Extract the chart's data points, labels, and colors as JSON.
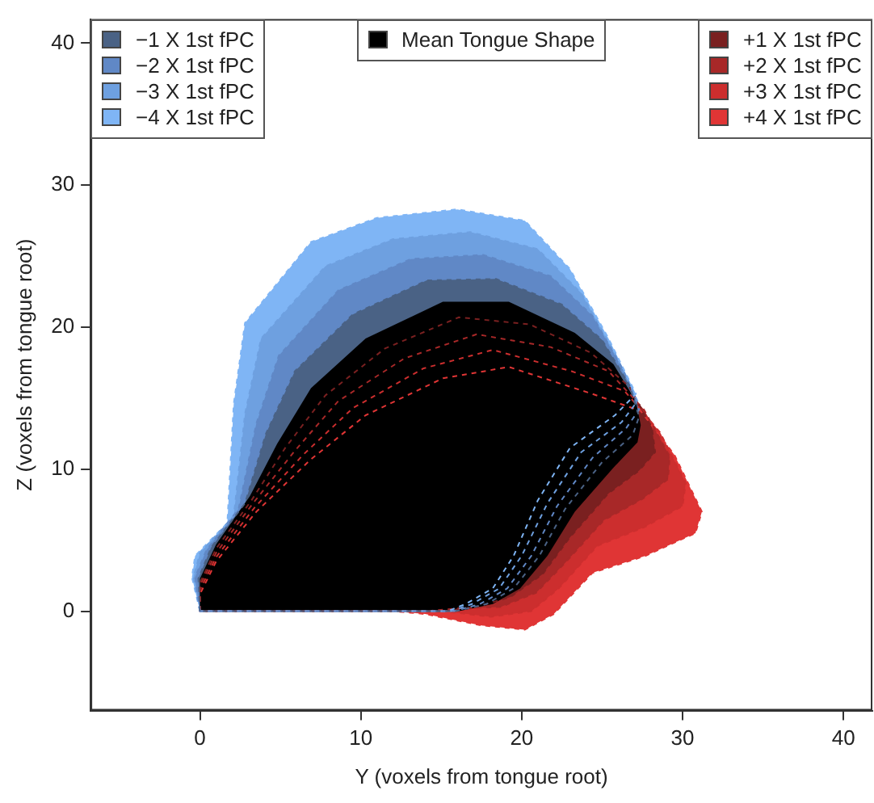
{
  "chart_data": {
    "type": "area",
    "xlabel": "Y (voxels from tongue root)",
    "ylabel": "Z (voxels from tongue root)",
    "xlim": [
      -6.8,
      41.8
    ],
    "ylim": [
      -7,
      41.7
    ],
    "xticks": [
      0,
      10,
      20,
      30,
      40
    ],
    "yticks": [
      0,
      10,
      20,
      30,
      40
    ],
    "grid": false,
    "legend": "top",
    "series": [
      {
        "name": "−1 X 1st fPC",
        "color": "#4a6285",
        "line_style": "dashed",
        "x": [
          0,
          -0.1,
          0.7,
          2.8,
          4.1,
          5.9,
          9.5,
          14.1,
          18.4,
          22.5,
          25,
          26.7,
          27.3,
          26.9,
          25,
          22.7,
          21.1,
          19.5,
          17.8,
          15.9
        ],
        "values": [
          0,
          2.3,
          4.5,
          7.6,
          12.5,
          16.9,
          20.9,
          23.3,
          23.4,
          21.6,
          19.1,
          15.9,
          13.7,
          12.4,
          10.5,
          7.2,
          3.9,
          1.6,
          0.5,
          0
        ]
      },
      {
        "name": "−2 X 1st fPC",
        "color": "#6088c6",
        "line_style": "dashed",
        "x": [
          0,
          -0.3,
          0.4,
          2.4,
          3.5,
          4.9,
          8.6,
          13.1,
          17.6,
          21.8,
          24.4,
          26.3,
          27.3,
          26.5,
          24.4,
          22.2,
          20.6,
          19.1,
          17.4,
          15.8
        ],
        "values": [
          0,
          2.4,
          4.3,
          7.2,
          13.2,
          18,
          22.6,
          24.8,
          25.1,
          23.6,
          20.8,
          17,
          14.2,
          12.9,
          10.8,
          7.4,
          3.9,
          1.6,
          0.5,
          0
        ]
      },
      {
        "name": "−3 X 1st fPC",
        "color": "#6ea0e0",
        "line_style": "dashed",
        "x": [
          0,
          -0.4,
          0,
          2.1,
          2.8,
          3.8,
          7.8,
          12,
          16.8,
          21,
          23.7,
          25.8,
          27.2,
          26.2,
          23.7,
          21.6,
          20,
          18.6,
          16.9,
          15.6
        ],
        "values": [
          0,
          2.4,
          4.1,
          6.7,
          13.9,
          19.2,
          24.3,
          26.2,
          26.7,
          25.5,
          22.4,
          18.1,
          14.8,
          13.3,
          11.2,
          7.6,
          3.9,
          1.6,
          0.5,
          0
        ]
      },
      {
        "name": "−4 X 1st fPC",
        "color": "#7fb5f5",
        "line_style": "dashed",
        "x": [
          0,
          -0.5,
          -0.3,
          1.7,
          2.1,
          2.8,
          6.9,
          11,
          16,
          20.2,
          23,
          25.4,
          27.1,
          25.8,
          23,
          21,
          19.5,
          18.2,
          16.5,
          15.4
        ],
        "values": [
          0,
          2.4,
          3.9,
          6.2,
          14.6,
          20.3,
          26,
          27.7,
          28.3,
          27.5,
          24.1,
          19.2,
          15.3,
          13.8,
          11.5,
          7.8,
          3.9,
          1.6,
          0.5,
          0
        ]
      },
      {
        "name": "Mean Tongue Shape",
        "color": "#000000",
        "x": [
          0,
          0,
          1,
          3.1,
          4.8,
          6.9,
          10.3,
          15.1,
          19.2,
          23.3,
          25.7,
          27.1,
          27.4,
          27.2,
          25.7,
          23.3,
          21.6,
          19.9,
          18.2,
          16.1
        ],
        "values": [
          0,
          2.3,
          4.7,
          8.1,
          11.8,
          15.7,
          19.2,
          21.8,
          21.8,
          19.6,
          17.4,
          14.8,
          13.1,
          11.9,
          10.1,
          7,
          3.9,
          1.6,
          0.5,
          0
        ]
      },
      {
        "name": "+1 X 1st fPC",
        "color": "#7a2020",
        "line_style": "dashed",
        "x": [
          0,
          0,
          1,
          3.2,
          5.3,
          7.8,
          11.5,
          16.1,
          20.5,
          24.3,
          26.7,
          28.1,
          28.3,
          27.3,
          25.4,
          23,
          21.3,
          19.3,
          17.2,
          15.1
        ],
        "values": [
          0,
          2,
          4.4,
          7.8,
          11.5,
          15.2,
          18.5,
          20.7,
          20.2,
          18.2,
          15.8,
          12.9,
          11.2,
          9.9,
          8.3,
          5.2,
          2.6,
          1,
          0.3,
          0
        ]
      },
      {
        "name": "+2 X 1st fPC",
        "color": "#a82828",
        "line_style": "dashed",
        "x": [
          0,
          0,
          1,
          3.3,
          5.9,
          8.6,
          12.7,
          17.2,
          21.8,
          25.4,
          27.6,
          29.2,
          29.1,
          27.5,
          25.1,
          22.7,
          20.9,
          18.7,
          16.1,
          14.1
        ],
        "values": [
          0,
          1.8,
          4.1,
          7.6,
          11.3,
          14.8,
          17.8,
          19.5,
          18.6,
          16.9,
          14.2,
          10.9,
          9.3,
          7.9,
          6.4,
          3.4,
          1.3,
          0.3,
          0.2,
          0
        ]
      },
      {
        "name": "+3 X 1st fPC",
        "color": "#cc2e2e",
        "line_style": "dashed",
        "x": [
          0,
          0,
          1,
          3.4,
          6.4,
          9.5,
          13.9,
          18.2,
          23.1,
          26.4,
          28.6,
          30.2,
          30,
          27.6,
          24.7,
          22.3,
          20.6,
          18.1,
          15.1,
          13
        ],
        "values": [
          0,
          1.5,
          3.8,
          7.3,
          11,
          14.3,
          17.1,
          18.4,
          16.9,
          15.5,
          12.6,
          9,
          7.4,
          5.9,
          4.6,
          1.6,
          0,
          -0.4,
          0,
          0
        ]
      },
      {
        "name": "+4 X 1st fPC",
        "color": "#e03535",
        "line_style": "dashed",
        "x": [
          0,
          0,
          1,
          3.5,
          6.9,
          10.3,
          15.1,
          19.2,
          24.4,
          27.4,
          29.5,
          31.2,
          30.8,
          27.7,
          24.4,
          22,
          20.2,
          17.5,
          14,
          12
        ],
        "values": [
          0,
          1.2,
          3.5,
          7,
          10.7,
          13.8,
          16.4,
          17.2,
          15.3,
          14.1,
          11,
          7,
          5.5,
          3.9,
          2.7,
          -0.2,
          -1.3,
          -1,
          -0.2,
          0
        ]
      }
    ]
  }
}
